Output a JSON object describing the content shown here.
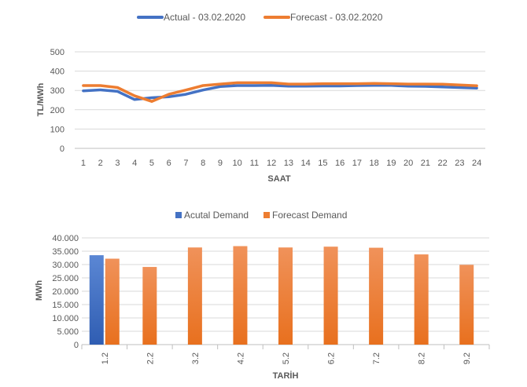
{
  "chart_data": [
    {
      "type": "line",
      "xlabel": "SAAT",
      "ylabel": "TL/MWh",
      "ylim": [
        0,
        500
      ],
      "yticks": [
        0,
        100,
        200,
        300,
        400,
        500
      ],
      "grid": true,
      "legend_position": "top",
      "x": [
        1,
        2,
        3,
        4,
        5,
        6,
        7,
        8,
        9,
        10,
        11,
        12,
        13,
        14,
        15,
        16,
        17,
        18,
        19,
        20,
        21,
        22,
        23,
        24
      ],
      "series": [
        {
          "name": "Actual - 03.02.2020",
          "color": "#4472C4",
          "values": [
            298,
            303,
            295,
            253,
            262,
            267,
            280,
            302,
            320,
            325,
            325,
            326,
            322,
            322,
            323,
            323,
            325,
            326,
            326,
            322,
            321,
            318,
            315,
            312
          ]
        },
        {
          "name": "Forecast - 03.02.2020",
          "color": "#ED7D31",
          "values": [
            325,
            325,
            315,
            272,
            243,
            280,
            302,
            325,
            333,
            340,
            340,
            340,
            333,
            333,
            335,
            335,
            335,
            336,
            335,
            333,
            333,
            332,
            328,
            324
          ]
        }
      ]
    },
    {
      "type": "bar",
      "xlabel": "TARİH",
      "ylabel": "MWh",
      "ylim": [
        0,
        40000
      ],
      "yticks": [
        "0",
        "5.000",
        "10.000",
        "15.000",
        "20.000",
        "25.000",
        "30.000",
        "35.000",
        "40.000"
      ],
      "yticks_values": [
        0,
        5000,
        10000,
        15000,
        20000,
        25000,
        30000,
        35000,
        40000
      ],
      "grid": true,
      "legend_position": "top",
      "categories": [
        "1.2",
        "2.2",
        "3.2",
        "4.2",
        "5.2",
        "6.2",
        "7.2",
        "8.2",
        "9.2"
      ],
      "series": [
        {
          "name": "Acutal Demand",
          "color": "#4472C4",
          "values": [
            33500,
            null,
            null,
            null,
            null,
            null,
            null,
            null,
            null
          ]
        },
        {
          "name": "Forecast Demand",
          "color": "#ED7D31",
          "values": [
            32200,
            29100,
            36400,
            36900,
            36400,
            36700,
            36300,
            33800,
            29900
          ]
        }
      ]
    }
  ]
}
